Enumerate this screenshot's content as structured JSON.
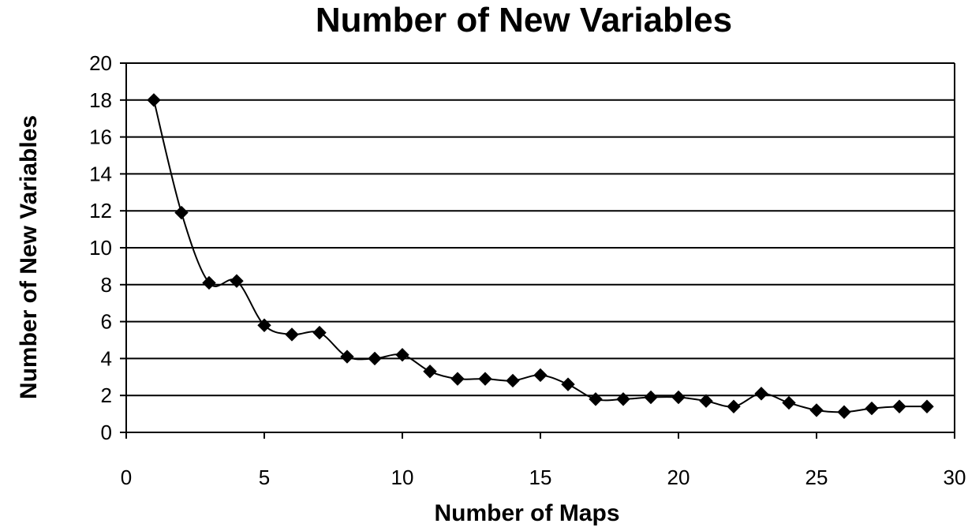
{
  "chart_data": {
    "type": "line",
    "title": "Number of New Variables",
    "xlabel": "Number of Maps",
    "ylabel": "Number of New Variables",
    "xlim": [
      0,
      30
    ],
    "ylim": [
      0,
      20
    ],
    "x_ticks": [
      0,
      5,
      10,
      15,
      20,
      25,
      30
    ],
    "y_ticks": [
      0,
      2,
      4,
      6,
      8,
      10,
      12,
      14,
      16,
      18,
      20
    ],
    "grid": "horizontal",
    "marker": "diamond",
    "smoothed": true,
    "series": [
      {
        "x": [
          1,
          2,
          3,
          4,
          5,
          6,
          7,
          8,
          9,
          10,
          11,
          12,
          13,
          14,
          15,
          16,
          17,
          18,
          19,
          20,
          21,
          22,
          23,
          24,
          25,
          26,
          27,
          28,
          29
        ],
        "values": [
          18,
          11.9,
          8.1,
          8.2,
          5.8,
          5.3,
          5.4,
          4.1,
          4.0,
          4.2,
          3.3,
          2.9,
          2.9,
          2.8,
          3.1,
          2.6,
          1.8,
          1.8,
          1.9,
          1.9,
          1.7,
          1.4,
          2.1,
          1.6,
          1.2,
          1.1,
          1.3,
          1.4,
          1.4
        ]
      }
    ]
  }
}
